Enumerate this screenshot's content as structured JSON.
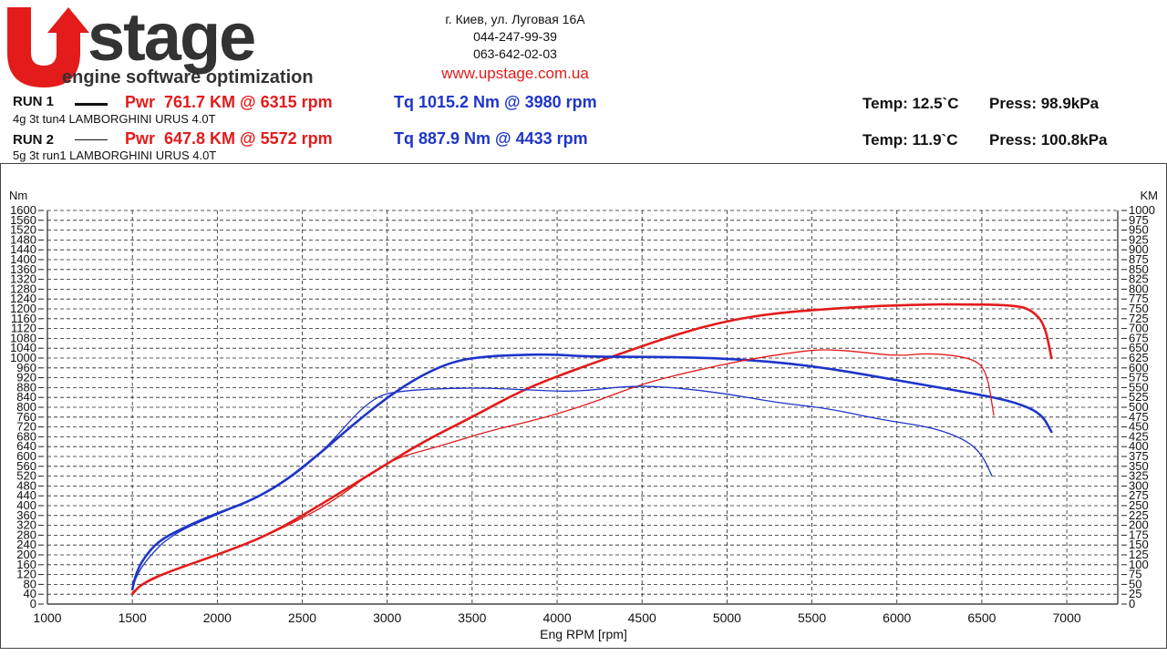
{
  "header": {
    "logo_text": "U stage",
    "logo_subtitle": "engine software optimization",
    "address": "г. Киев, ул. Луговая 16А",
    "phone1": "044-247-99-39",
    "phone2": "063-642-02-03",
    "website": "www.upstage.com.ua",
    "brand_red": "#e31b1b",
    "brand_dark": "#333333"
  },
  "runs": [
    {
      "label": "RUN 1",
      "desc": "4g 3t tun4 LAMBORGHINI URUS 4.0T",
      "pwr": "Pwr  761.7 KM @ 6315 rpm",
      "tq": "Tq 1015.2 Nm @ 3980 rpm",
      "temp": "Temp: 12.5`C",
      "press": "Press: 98.9kPa"
    },
    {
      "label": "RUN 2",
      "desc": "5g 3t run1 LAMBORGHINI URUS 4.0T",
      "pwr": "Pwr  647.8 KM @ 5572 rpm",
      "tq": "Tq 887.9 Nm @ 4433 rpm",
      "temp": "Temp: 11.9`C",
      "press": "Press: 100.8kPa"
    }
  ],
  "chart_data": {
    "type": "line",
    "xlabel": "Eng RPM [rpm]",
    "ylabel_left": "Nm",
    "ylabel_right": "KM",
    "xlim": [
      1000,
      7300
    ],
    "ylim_left": [
      0,
      1600
    ],
    "ylim_right": [
      0,
      1000
    ],
    "x_ticks": [
      1000,
      1500,
      2000,
      2500,
      3000,
      3500,
      4000,
      4500,
      5000,
      5500,
      6000,
      6500,
      7000
    ],
    "y_left_ticks_step": 40,
    "y_right_ticks_step": 25,
    "grid": true,
    "series": [
      {
        "name": "RUN 1 Pwr",
        "axis": "right",
        "color": "#e31b1b",
        "width": 2.6,
        "points": [
          [
            1500,
            25
          ],
          [
            1550,
            50
          ],
          [
            1700,
            80
          ],
          [
            2000,
            125
          ],
          [
            2300,
            175
          ],
          [
            2600,
            250
          ],
          [
            2900,
            330
          ],
          [
            3200,
            410
          ],
          [
            3500,
            475
          ],
          [
            3800,
            545
          ],
          [
            4100,
            595
          ],
          [
            4400,
            640
          ],
          [
            4700,
            685
          ],
          [
            5000,
            720
          ],
          [
            5300,
            740
          ],
          [
            5600,
            750
          ],
          [
            5900,
            758
          ],
          [
            6200,
            761
          ],
          [
            6315,
            761.7
          ],
          [
            6700,
            760
          ],
          [
            6800,
            745
          ],
          [
            6870,
            710
          ],
          [
            6910,
            625
          ]
        ]
      },
      {
        "name": "RUN 1 Tq",
        "axis": "left",
        "color": "#1f35c8",
        "width": 2.6,
        "points": [
          [
            1500,
            60
          ],
          [
            1520,
            120
          ],
          [
            1560,
            180
          ],
          [
            1650,
            255
          ],
          [
            1800,
            310
          ],
          [
            2000,
            370
          ],
          [
            2200,
            420
          ],
          [
            2400,
            500
          ],
          [
            2600,
            610
          ],
          [
            2800,
            730
          ],
          [
            3000,
            840
          ],
          [
            3200,
            930
          ],
          [
            3400,
            990
          ],
          [
            3600,
            1008
          ],
          [
            3800,
            1013
          ],
          [
            3980,
            1015.2
          ],
          [
            4200,
            1005
          ],
          [
            4500,
            1005
          ],
          [
            5000,
            1000
          ],
          [
            5500,
            970
          ],
          [
            6000,
            910
          ],
          [
            6500,
            850
          ],
          [
            6700,
            820
          ],
          [
            6850,
            775
          ],
          [
            6910,
            700
          ]
        ]
      },
      {
        "name": "RUN 2 Pwr",
        "axis": "right",
        "color": "#e31b1b",
        "width": 1.3,
        "points": [
          [
            1500,
            30
          ],
          [
            1600,
            65
          ],
          [
            1800,
            95
          ],
          [
            2100,
            140
          ],
          [
            2400,
            195
          ],
          [
            2700,
            265
          ],
          [
            3000,
            365
          ],
          [
            3300,
            400
          ],
          [
            3600,
            440
          ],
          [
            3900,
            470
          ],
          [
            4200,
            510
          ],
          [
            4500,
            560
          ],
          [
            4800,
            592
          ],
          [
            5100,
            620
          ],
          [
            5400,
            640
          ],
          [
            5572,
            647.8
          ],
          [
            5800,
            640
          ],
          [
            6000,
            630
          ],
          [
            6200,
            638
          ],
          [
            6450,
            625
          ],
          [
            6530,
            590
          ],
          [
            6570,
            480
          ]
        ]
      },
      {
        "name": "RUN 2 Tq",
        "axis": "left",
        "color": "#1f35c8",
        "width": 1.3,
        "points": [
          [
            1500,
            70
          ],
          [
            1550,
            150
          ],
          [
            1650,
            230
          ],
          [
            1700,
            260
          ],
          [
            1800,
            305
          ],
          [
            2000,
            365
          ],
          [
            2300,
            450
          ],
          [
            2600,
            600
          ],
          [
            2900,
            840
          ],
          [
            3100,
            870
          ],
          [
            3500,
            880
          ],
          [
            3800,
            872
          ],
          [
            4100,
            862
          ],
          [
            4433,
            887.9
          ],
          [
            4700,
            880
          ],
          [
            5000,
            855
          ],
          [
            5300,
            818
          ],
          [
            5600,
            795
          ],
          [
            5900,
            750
          ],
          [
            6200,
            720
          ],
          [
            6400,
            670
          ],
          [
            6500,
            610
          ],
          [
            6560,
            520
          ]
        ]
      }
    ]
  }
}
